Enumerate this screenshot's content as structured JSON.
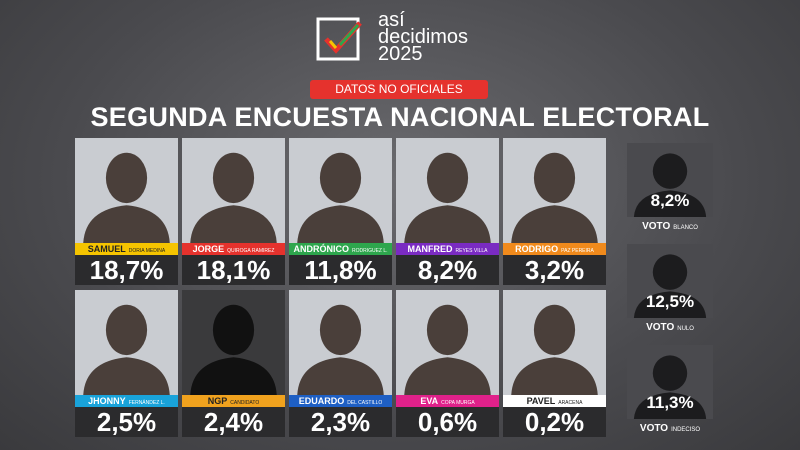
{
  "header": {
    "logo_line1": "así",
    "logo_line2": "decidimos",
    "logo_line3": "2025",
    "badge": "DATOS NO OFICIALES",
    "title": "SEGUNDA ENCUESTA NACIONAL ELECTORAL"
  },
  "candidates": [
    {
      "first": "SAMUEL",
      "last": "DORIA MEDINA",
      "percent": "18,7%",
      "color": "#f5c400",
      "text_color": "#222"
    },
    {
      "first": "JORGE",
      "last": "QUIROGA RAMIREZ",
      "percent": "18,1%",
      "color": "#e5322d",
      "text_color": "#fff"
    },
    {
      "first": "ANDRÓNICO",
      "last": "RODRIGUEZ L.",
      "percent": "11,8%",
      "color": "#2ea64d",
      "text_color": "#fff"
    },
    {
      "first": "MANFRED",
      "last": "REYES VILLA",
      "percent": "8,2%",
      "color": "#7a2bc2",
      "text_color": "#fff"
    },
    {
      "first": "RODRIGO",
      "last": "PAZ PEREIRA",
      "percent": "3,2%",
      "color": "#f08a1c",
      "text_color": "#fff"
    },
    {
      "first": "JHONNY",
      "last": "FERNÁNDEZ L.",
      "percent": "2,5%",
      "color": "#19a3da",
      "text_color": "#fff"
    },
    {
      "first": "NGP",
      "last": "CANDIDATO",
      "percent": "2,4%",
      "color": "#f0a21e",
      "text_color": "#222"
    },
    {
      "first": "EDUARDO",
      "last": "DEL CASTILLO",
      "percent": "2,3%",
      "color": "#1e5fc4",
      "text_color": "#fff"
    },
    {
      "first": "EVA",
      "last": "COPA MURGA",
      "percent": "0,6%",
      "color": "#e0218a",
      "text_color": "#fff"
    },
    {
      "first": "PAVEL",
      "last": "ARACENA",
      "percent": "0,2%",
      "color": "#ffffff",
      "text_color": "#222"
    }
  ],
  "other_votes": [
    {
      "percent": "8,2%",
      "label": "VOTO",
      "sublabel": "BLANCO"
    },
    {
      "percent": "12,5%",
      "label": "VOTO",
      "sublabel": "NULO"
    },
    {
      "percent": "11,3%",
      "label": "VOTO",
      "sublabel": "INDECISO"
    }
  ]
}
